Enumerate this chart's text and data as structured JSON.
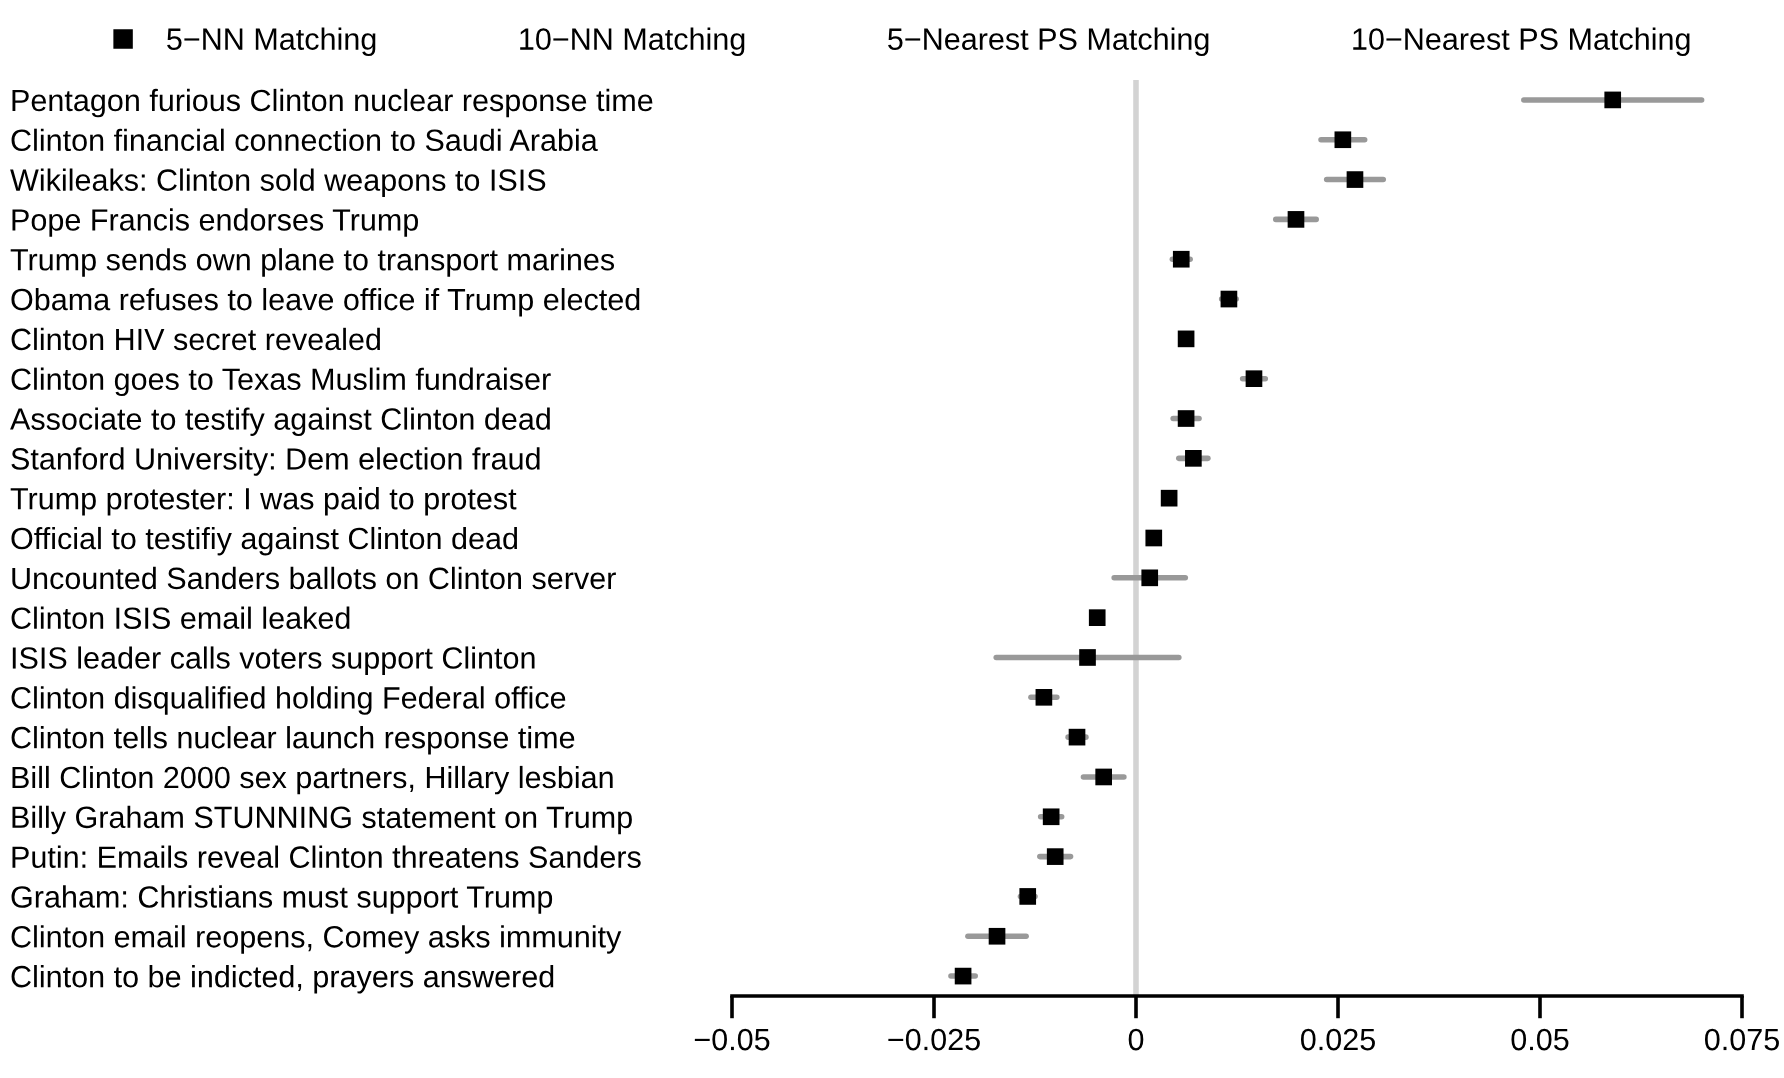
{
  "chart_data": {
    "type": "scatter",
    "orientation": "horizontal",
    "marker": "square",
    "grid": false,
    "legend": "top",
    "categories": [
      "Pentagon furious Clinton nuclear response time",
      "Clinton financial connection to Saudi Arabia",
      "Wikileaks: Clinton sold weapons to ISIS",
      "Pope Francis endorses Trump",
      "Trump sends own plane to transport marines",
      "Obama refuses to leave office if Trump elected",
      "Clinton HIV secret revealed",
      "Clinton goes to Texas Muslim fundraiser",
      "Associate to testify against Clinton dead",
      "Stanford University: Dem election fraud",
      "Trump protester: I was paid to protest",
      "Official to testifiy against Clinton dead",
      "Uncounted Sanders ballots on Clinton server",
      "Clinton ISIS email leaked",
      "ISIS leader calls voters support Clinton",
      "Clinton disqualified holding Federal office",
      "Clinton tells nuclear launch response time",
      "Bill Clinton 2000 sex partners, Hillary lesbian",
      "Billy Graham STUNNING statement on Trump",
      "Putin: Emails reveal Clinton threatens Sanders",
      "Graham: Christians must support Trump",
      "Clinton email reopens, Comey asks immunity",
      "Clinton to be indicted, prayers answered"
    ],
    "series": [
      {
        "name": "5−NN Matching",
        "color": "#000000",
        "values": [
          0.059,
          0.0256,
          0.0271,
          0.0198,
          0.0056,
          0.0115,
          0.0062,
          0.0146,
          0.0062,
          0.0071,
          0.0041,
          0.0022,
          0.0017,
          -0.0048,
          -0.006,
          -0.0114,
          -0.0073,
          -0.004,
          -0.0105,
          -0.01,
          -0.0134,
          -0.0172,
          -0.0214
        ],
        "errors": [
          0.011,
          0.0027,
          0.0035,
          0.0025,
          0.0011,
          0.0009,
          null,
          0.0014,
          0.0016,
          0.0018,
          null,
          null,
          0.0044,
          null,
          0.0113,
          0.0016,
          0.0011,
          0.0025,
          0.0013,
          0.0019,
          0.0009,
          0.0036,
          0.0015
        ]
      },
      {
        "name": "10−NN Matching",
        "values": [
          null,
          null,
          null,
          null,
          null,
          null,
          null,
          null,
          null,
          null,
          null,
          null,
          null,
          null,
          null,
          null,
          null,
          null,
          null,
          null,
          null,
          null,
          null
        ]
      },
      {
        "name": "5−Nearest PS Matching",
        "values": [
          null,
          null,
          null,
          null,
          null,
          null,
          null,
          null,
          null,
          null,
          null,
          null,
          null,
          null,
          null,
          null,
          null,
          null,
          null,
          null,
          null,
          null,
          null
        ]
      },
      {
        "name": "10−Nearest PS Matching",
        "values": [
          null,
          null,
          null,
          null,
          null,
          null,
          null,
          null,
          null,
          null,
          null,
          null,
          null,
          null,
          null,
          null,
          null,
          null,
          null,
          null,
          null,
          null,
          null
        ]
      }
    ],
    "xlim": [
      -0.05,
      0.075
    ],
    "xticks": [
      {
        "value": -0.05,
        "label": "−0.05"
      },
      {
        "value": -0.025,
        "label": "−0.025"
      },
      0,
      0.025,
      0.05,
      0.075
    ],
    "ref_lines": [
      {
        "axis": "x",
        "value": 0,
        "color": "#d3d3d3"
      }
    ]
  }
}
